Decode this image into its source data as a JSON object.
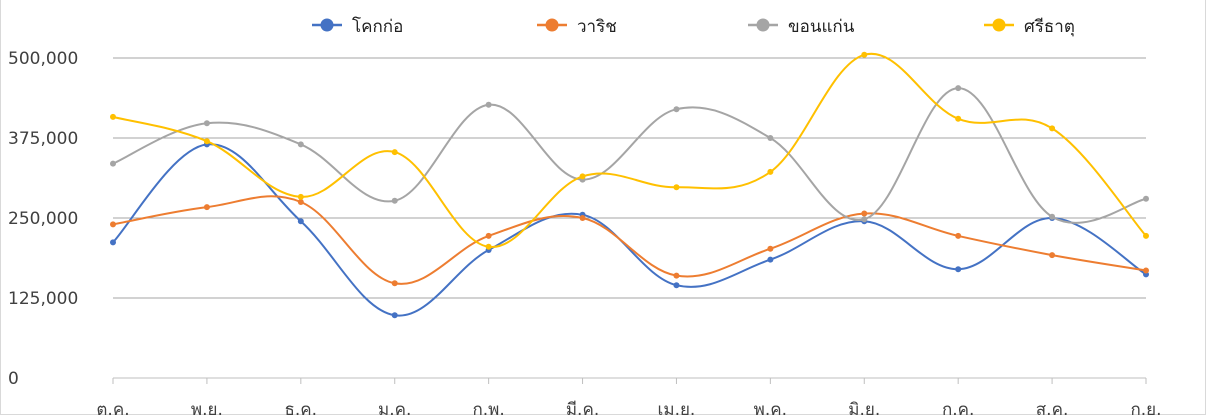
{
  "chart_data": {
    "type": "line",
    "smooth": true,
    "title": "",
    "xlabel": "",
    "ylabel": "",
    "categories": [
      "ต.ค.",
      "พ.ย.",
      "ธ.ค.",
      "ม.ค.",
      "ก.พ.",
      "มี.ค.",
      "เม.ย.",
      "พ.ค.",
      "มิ.ย.",
      "ก.ค.",
      "ส.ค.",
      "ก.ย."
    ],
    "ylim": [
      0,
      500000
    ],
    "yticks": [
      0,
      125000,
      250000,
      375000,
      500000
    ],
    "ytick_labels": [
      "0",
      "125,000",
      "250,000",
      "375,000",
      "500,000"
    ],
    "grid": true,
    "legend_position": "top",
    "series": [
      {
        "name": "โคกก่อ",
        "color": "#4472C4",
        "values": [
          212000,
          365000,
          245000,
          98000,
          200000,
          255000,
          145000,
          185000,
          245000,
          170000,
          250000,
          162000
        ]
      },
      {
        "name": "วาริช",
        "color": "#ED7D31",
        "values": [
          240000,
          267000,
          275000,
          148000,
          222000,
          250000,
          160000,
          202000,
          257000,
          222000,
          192000,
          168000
        ]
      },
      {
        "name": "ขอนแก่น",
        "color": "#A5A5A5",
        "values": [
          335000,
          398000,
          365000,
          277000,
          427000,
          310000,
          420000,
          375000,
          248000,
          453000,
          252000,
          280000
        ]
      },
      {
        "name": "ศรีธาตุ",
        "color": "#FFC000",
        "values": [
          408000,
          370000,
          283000,
          353000,
          205000,
          315000,
          298000,
          322000,
          505000,
          405000,
          390000,
          222000
        ]
      }
    ]
  }
}
